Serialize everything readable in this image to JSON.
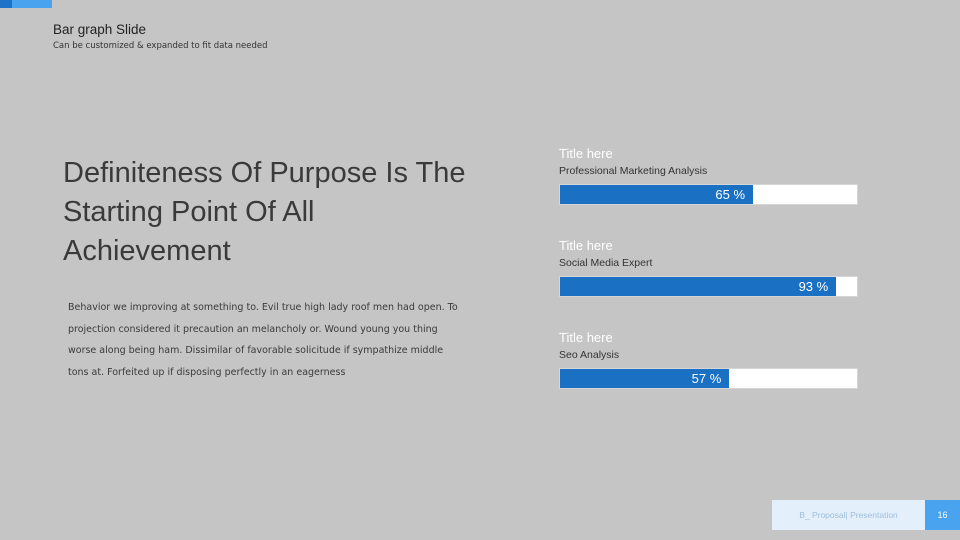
{
  "slide": {
    "title": "Bar graph Slide",
    "subtitle": "Can be customized & expanded to fit data needed",
    "headline": "Definiteness Of Purpose Is The Starting Point Of All Achievement",
    "body_lines": [
      "Behavior we improving at something to. Evil true high lady roof men had open. To",
      "projection considered it precaution an melancholy or. Wound young you thing",
      "worse along being ham. Dissimilar of favorable solicitude if sympathize middle",
      "tons at. Forfeited up if disposing perfectly in an eagerness"
    ]
  },
  "colors": {
    "background": "#c5c5c5",
    "bar_fill": "#1a70c2",
    "bar_track": "#ffffff",
    "accent_dark": "#1e73c8",
    "accent_light": "#4aa3ee",
    "footer_box": "#e3f0fc"
  },
  "chart_data": {
    "type": "bar",
    "orientation": "horizontal",
    "unit": "%",
    "categories": [
      "Professional Marketing Analysis",
      "Social Media Expert",
      "Seo Analysis"
    ],
    "titles": [
      "Title here",
      "Title here",
      "Title here"
    ],
    "values": [
      65,
      93,
      57
    ],
    "value_labels": [
      "65 %",
      "93 %",
      "57 %"
    ],
    "xlim": [
      0,
      100
    ]
  },
  "footer": {
    "label": "B_ Proposal| Presentation",
    "page": "16"
  }
}
